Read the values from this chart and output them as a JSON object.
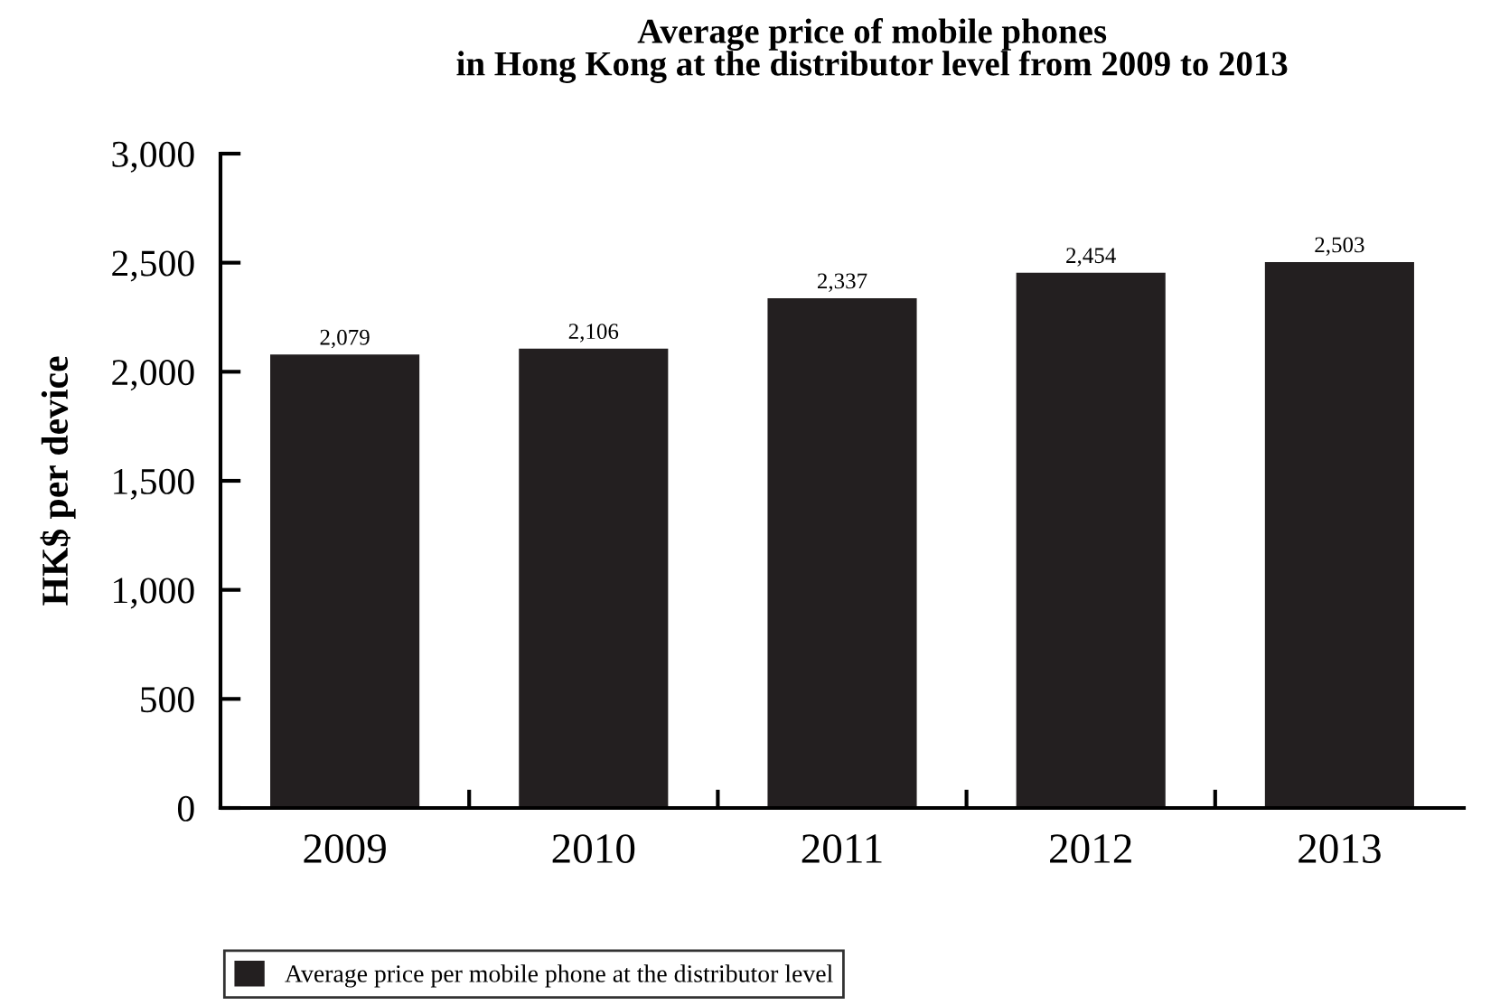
{
  "chart_data": {
    "type": "bar",
    "title": "Average price of mobile phones\nin Hong Kong at the distributor level from 2009 to 2013",
    "ylabel": "HK$ per device",
    "categories": [
      "2009",
      "2010",
      "2011",
      "2012",
      "2013"
    ],
    "series": [
      {
        "name": "Average price per mobile phone at the distributor level",
        "color": "#231f20",
        "values": [
          2079,
          2106,
          2337,
          2454,
          2503
        ]
      }
    ],
    "value_labels": [
      "2,079",
      "2,106",
      "2,337",
      "2,454",
      "2,503"
    ],
    "ylim": [
      0,
      3000
    ],
    "yticks": [
      {
        "value": 0,
        "label": "0"
      },
      {
        "value": 500,
        "label": "500"
      },
      {
        "value": 1000,
        "label": "1,000"
      },
      {
        "value": 1500,
        "label": "1,500"
      },
      {
        "value": 2000,
        "label": "2,000"
      },
      {
        "value": 2500,
        "label": "2,500"
      },
      {
        "value": 3000,
        "label": "3,000"
      }
    ],
    "grid": false,
    "legend": "bottom left"
  }
}
